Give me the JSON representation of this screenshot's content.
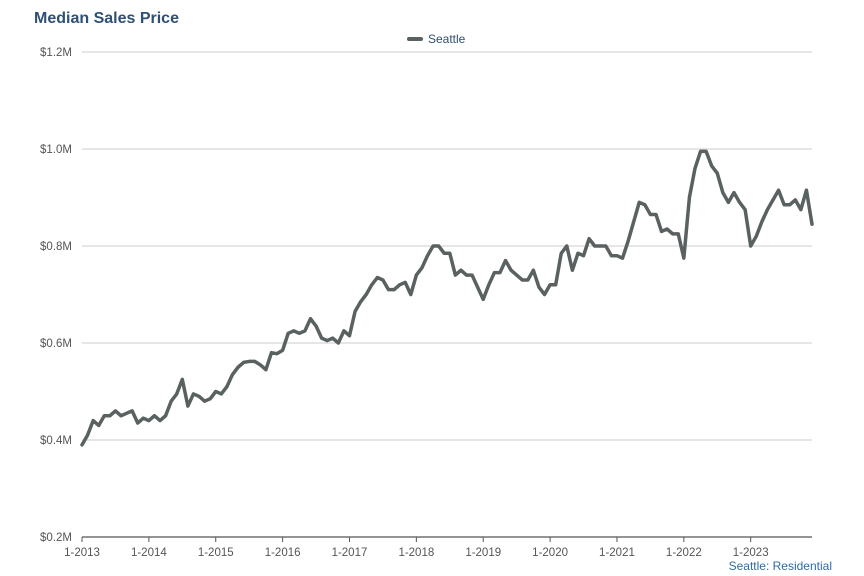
{
  "chart_data": {
    "type": "line",
    "title": "Median Sales Price",
    "xlabel": "",
    "ylabel": "",
    "x_tick_labels": [
      "1-2013",
      "1-2014",
      "1-2015",
      "1-2016",
      "1-2017",
      "1-2018",
      "1-2019",
      "1-2020",
      "1-2021",
      "1-2022",
      "1-2023"
    ],
    "y_tick_labels": [
      "$0.2M",
      "$0.4M",
      "$0.6M",
      "$0.8M",
      "$1.0M",
      "$1.2M"
    ],
    "y_ticks": [
      0.2,
      0.4,
      0.6,
      0.8,
      1.0,
      1.2
    ],
    "ylim": [
      0.2,
      1.2
    ],
    "x_start": "1-2013",
    "x_end": "12-2023",
    "grid": true,
    "legend_position": "top-center",
    "footer": "Seattle: Residential",
    "colors": {
      "line": "#5a6161",
      "title": "#2f4f74",
      "footer": "#2f6ca6",
      "grid": "#cccccc"
    },
    "series": [
      {
        "name": "Seattle",
        "values": [
          0.39,
          0.41,
          0.44,
          0.43,
          0.45,
          0.45,
          0.46,
          0.45,
          0.455,
          0.46,
          0.435,
          0.445,
          0.44,
          0.45,
          0.44,
          0.45,
          0.48,
          0.495,
          0.525,
          0.47,
          0.495,
          0.49,
          0.48,
          0.485,
          0.5,
          0.495,
          0.51,
          0.535,
          0.55,
          0.56,
          0.562,
          0.562,
          0.555,
          0.545,
          0.58,
          0.578,
          0.585,
          0.62,
          0.625,
          0.62,
          0.625,
          0.65,
          0.635,
          0.61,
          0.605,
          0.61,
          0.6,
          0.625,
          0.615,
          0.665,
          0.685,
          0.7,
          0.72,
          0.735,
          0.73,
          0.71,
          0.71,
          0.72,
          0.725,
          0.7,
          0.74,
          0.755,
          0.78,
          0.8,
          0.8,
          0.785,
          0.785,
          0.74,
          0.75,
          0.74,
          0.74,
          0.715,
          0.69,
          0.72,
          0.745,
          0.745,
          0.77,
          0.75,
          0.74,
          0.73,
          0.73,
          0.75,
          0.715,
          0.7,
          0.72,
          0.72,
          0.785,
          0.8,
          0.75,
          0.785,
          0.78,
          0.815,
          0.8,
          0.8,
          0.8,
          0.78,
          0.78,
          0.775,
          0.81,
          0.85,
          0.89,
          0.885,
          0.865,
          0.865,
          0.83,
          0.835,
          0.825,
          0.825,
          0.775,
          0.9,
          0.96,
          0.995,
          0.995,
          0.965,
          0.95,
          0.91,
          0.89,
          0.91,
          0.89,
          0.875,
          0.8,
          0.82,
          0.85,
          0.875,
          0.895,
          0.915,
          0.885,
          0.885,
          0.895,
          0.875,
          0.915,
          0.845
        ]
      }
    ]
  }
}
